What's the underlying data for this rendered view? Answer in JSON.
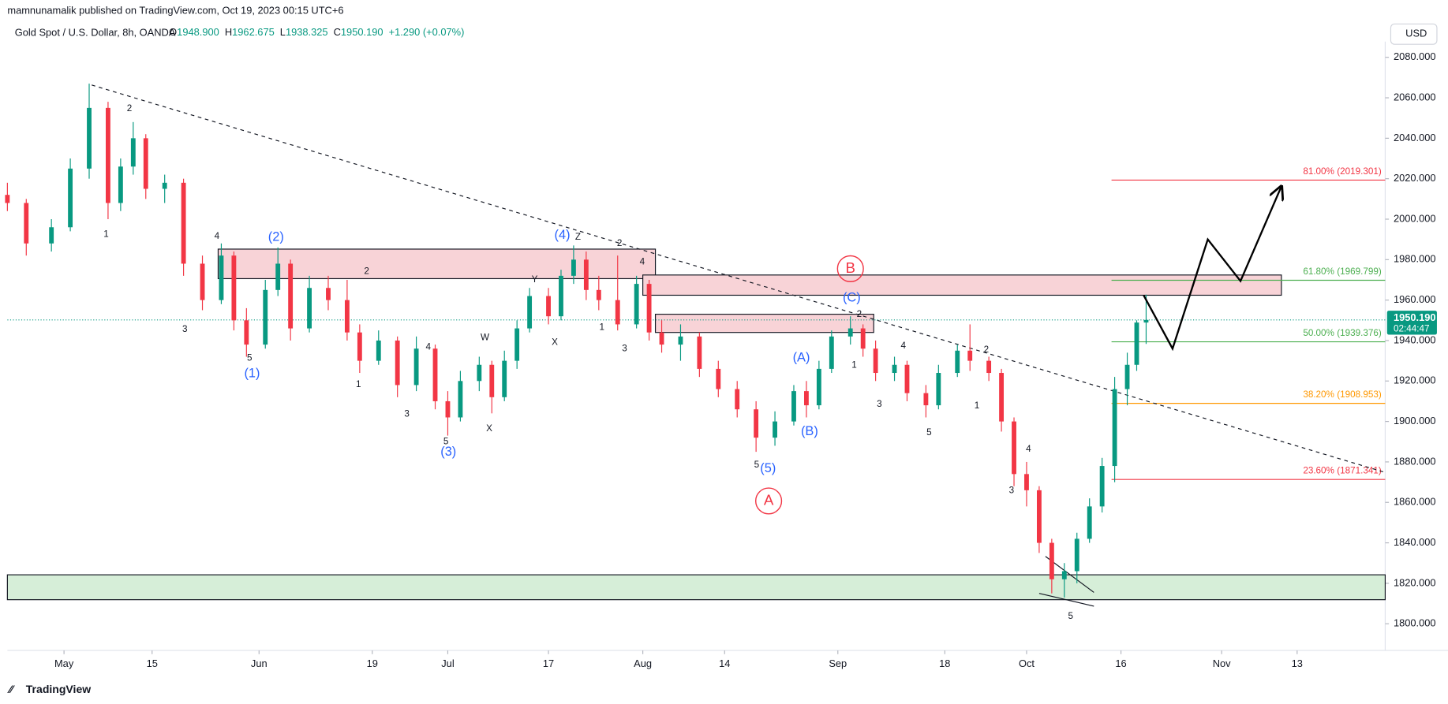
{
  "header": {
    "publisher": "mamnunamalik published on TradingView.com, Oct 19, 2023 00:15 UTC+6",
    "symbol": "Gold Spot / U.S. Dollar, 8h, OANDA",
    "ohlc": [
      {
        "label": "O",
        "value": "1948.900"
      },
      {
        "label": "H",
        "value": "1962.675"
      },
      {
        "label": "L",
        "value": "1938.325"
      },
      {
        "label": "C",
        "value": "1950.190"
      }
    ],
    "change": "+1.290 (+0.07%)",
    "currency": "USD"
  },
  "chart_data": {
    "type": "candlestick",
    "xlim": [
      -9,
      210
    ],
    "ylim": [
      1786.8,
      2087.8
    ],
    "xticks": [
      {
        "value": 0,
        "label": "May"
      },
      {
        "value": 14,
        "label": "15"
      },
      {
        "value": 31,
        "label": "Jun"
      },
      {
        "value": 49,
        "label": "19"
      },
      {
        "value": 61,
        "label": "Jul"
      },
      {
        "value": 77,
        "label": "17"
      },
      {
        "value": 92,
        "label": "Aug"
      },
      {
        "value": 105,
        "label": "14"
      },
      {
        "value": 123,
        "label": "Sep"
      },
      {
        "value": 140,
        "label": "18"
      },
      {
        "value": 153,
        "label": "Oct"
      },
      {
        "value": 168,
        "label": "16"
      },
      {
        "value": 184,
        "label": "Nov"
      },
      {
        "value": 196,
        "label": "13"
      }
    ],
    "yticks": [
      {
        "value": 2080,
        "label": "2080.000"
      },
      {
        "value": 2060,
        "label": "2060.000"
      },
      {
        "value": 2040,
        "label": "2040.000"
      },
      {
        "value": 2020,
        "label": "2020.000"
      },
      {
        "value": 2000,
        "label": "2000.000"
      },
      {
        "value": 1980,
        "label": "1980.000"
      },
      {
        "value": 1960,
        "label": "1960.000"
      },
      {
        "value": 1940,
        "label": "1940.000"
      },
      {
        "value": 1920,
        "label": "1920.000"
      },
      {
        "value": 1900,
        "label": "1900.000"
      },
      {
        "value": 1880,
        "label": "1880.000"
      },
      {
        "value": 1860,
        "label": "1860.000"
      },
      {
        "value": 1840,
        "label": "1840.000"
      },
      {
        "value": 1820,
        "label": "1820.000"
      },
      {
        "value": 1800,
        "label": "1800.000"
      }
    ],
    "up_color": "#089981",
    "down_color": "#f23645",
    "candles": [
      {
        "x": -9,
        "o": 2012,
        "h": 2018,
        "l": 2004,
        "c": 2008
      },
      {
        "x": -6,
        "o": 2008,
        "h": 2010,
        "l": 1982,
        "c": 1988
      },
      {
        "x": -2,
        "o": 1988,
        "h": 2000,
        "l": 1984,
        "c": 1996
      },
      {
        "x": 1,
        "o": 1996,
        "h": 2030,
        "l": 1994,
        "c": 2025
      },
      {
        "x": 4,
        "o": 2025,
        "h": 2067,
        "l": 2020,
        "c": 2055
      },
      {
        "x": 7,
        "o": 2055,
        "h": 2058,
        "l": 2000,
        "c": 2008
      },
      {
        "x": 9,
        "o": 2008,
        "h": 2030,
        "l": 2004,
        "c": 2026
      },
      {
        "x": 11,
        "o": 2026,
        "h": 2048,
        "l": 2022,
        "c": 2040
      },
      {
        "x": 13,
        "o": 2040,
        "h": 2042,
        "l": 2010,
        "c": 2015
      },
      {
        "x": 16,
        "o": 2015,
        "h": 2022,
        "l": 2008,
        "c": 2018
      },
      {
        "x": 19,
        "o": 2018,
        "h": 2020,
        "l": 1972,
        "c": 1978
      },
      {
        "x": 22,
        "o": 1978,
        "h": 1982,
        "l": 1955,
        "c": 1960
      },
      {
        "x": 25,
        "o": 1960,
        "h": 1988,
        "l": 1958,
        "c": 1982
      },
      {
        "x": 27,
        "o": 1982,
        "h": 1984,
        "l": 1945,
        "c": 1950
      },
      {
        "x": 29,
        "o": 1950,
        "h": 1956,
        "l": 1932,
        "c": 1938
      },
      {
        "x": 32,
        "o": 1938,
        "h": 1970,
        "l": 1936,
        "c": 1965
      },
      {
        "x": 34,
        "o": 1965,
        "h": 1986,
        "l": 1962,
        "c": 1978
      },
      {
        "x": 36,
        "o": 1978,
        "h": 1980,
        "l": 1940,
        "c": 1946
      },
      {
        "x": 39,
        "o": 1946,
        "h": 1972,
        "l": 1944,
        "c": 1966
      },
      {
        "x": 42,
        "o": 1966,
        "h": 1972,
        "l": 1955,
        "c": 1960
      },
      {
        "x": 45,
        "o": 1960,
        "h": 1970,
        "l": 1940,
        "c": 1944
      },
      {
        "x": 47,
        "o": 1944,
        "h": 1948,
        "l": 1924,
        "c": 1930
      },
      {
        "x": 50,
        "o": 1930,
        "h": 1945,
        "l": 1928,
        "c": 1940
      },
      {
        "x": 53,
        "o": 1940,
        "h": 1942,
        "l": 1912,
        "c": 1918
      },
      {
        "x": 56,
        "o": 1918,
        "h": 1942,
        "l": 1915,
        "c": 1936
      },
      {
        "x": 59,
        "o": 1936,
        "h": 1938,
        "l": 1906,
        "c": 1910
      },
      {
        "x": 61,
        "o": 1910,
        "h": 1915,
        "l": 1893,
        "c": 1902
      },
      {
        "x": 63,
        "o": 1902,
        "h": 1925,
        "l": 1900,
        "c": 1920
      },
      {
        "x": 66,
        "o": 1920,
        "h": 1932,
        "l": 1915,
        "c": 1928
      },
      {
        "x": 68,
        "o": 1928,
        "h": 1930,
        "l": 1904,
        "c": 1912
      },
      {
        "x": 70,
        "o": 1912,
        "h": 1935,
        "l": 1910,
        "c": 1930
      },
      {
        "x": 72,
        "o": 1930,
        "h": 1950,
        "l": 1926,
        "c": 1946
      },
      {
        "x": 74,
        "o": 1946,
        "h": 1966,
        "l": 1944,
        "c": 1962
      },
      {
        "x": 77,
        "o": 1962,
        "h": 1966,
        "l": 1948,
        "c": 1952
      },
      {
        "x": 79,
        "o": 1952,
        "h": 1975,
        "l": 1950,
        "c": 1972
      },
      {
        "x": 81,
        "o": 1972,
        "h": 1987,
        "l": 1968,
        "c": 1980
      },
      {
        "x": 83,
        "o": 1980,
        "h": 1984,
        "l": 1960,
        "c": 1965
      },
      {
        "x": 85,
        "o": 1965,
        "h": 1972,
        "l": 1955,
        "c": 1960
      },
      {
        "x": 88,
        "o": 1960,
        "h": 1982,
        "l": 1945,
        "c": 1948
      },
      {
        "x": 91,
        "o": 1948,
        "h": 1972,
        "l": 1946,
        "c": 1968
      },
      {
        "x": 93,
        "o": 1968,
        "h": 1970,
        "l": 1940,
        "c": 1944
      },
      {
        "x": 95,
        "o": 1944,
        "h": 1950,
        "l": 1934,
        "c": 1938
      },
      {
        "x": 98,
        "o": 1938,
        "h": 1948,
        "l": 1930,
        "c": 1942
      },
      {
        "x": 101,
        "o": 1942,
        "h": 1944,
        "l": 1922,
        "c": 1926
      },
      {
        "x": 104,
        "o": 1926,
        "h": 1930,
        "l": 1912,
        "c": 1916
      },
      {
        "x": 107,
        "o": 1916,
        "h": 1920,
        "l": 1902,
        "c": 1906
      },
      {
        "x": 110,
        "o": 1906,
        "h": 1910,
        "l": 1885,
        "c": 1892
      },
      {
        "x": 113,
        "o": 1892,
        "h": 1905,
        "l": 1888,
        "c": 1900
      },
      {
        "x": 116,
        "o": 1900,
        "h": 1918,
        "l": 1898,
        "c": 1915
      },
      {
        "x": 118,
        "o": 1915,
        "h": 1920,
        "l": 1902,
        "c": 1908
      },
      {
        "x": 120,
        "o": 1908,
        "h": 1930,
        "l": 1906,
        "c": 1926
      },
      {
        "x": 122,
        "o": 1926,
        "h": 1945,
        "l": 1924,
        "c": 1942
      },
      {
        "x": 125,
        "o": 1942,
        "h": 1952,
        "l": 1938,
        "c": 1946
      },
      {
        "x": 127,
        "o": 1946,
        "h": 1948,
        "l": 1932,
        "c": 1936
      },
      {
        "x": 129,
        "o": 1936,
        "h": 1940,
        "l": 1920,
        "c": 1924
      },
      {
        "x": 132,
        "o": 1924,
        "h": 1932,
        "l": 1920,
        "c": 1928
      },
      {
        "x": 134,
        "o": 1928,
        "h": 1930,
        "l": 1910,
        "c": 1914
      },
      {
        "x": 137,
        "o": 1914,
        "h": 1918,
        "l": 1902,
        "c": 1908
      },
      {
        "x": 139,
        "o": 1908,
        "h": 1928,
        "l": 1906,
        "c": 1924
      },
      {
        "x": 142,
        "o": 1924,
        "h": 1938,
        "l": 1922,
        "c": 1935
      },
      {
        "x": 144,
        "o": 1935,
        "h": 1948,
        "l": 1925,
        "c": 1930
      },
      {
        "x": 147,
        "o": 1930,
        "h": 1932,
        "l": 1920,
        "c": 1924
      },
      {
        "x": 149,
        "o": 1924,
        "h": 1926,
        "l": 1895,
        "c": 1900
      },
      {
        "x": 151,
        "o": 1900,
        "h": 1902,
        "l": 1868,
        "c": 1874
      },
      {
        "x": 153,
        "o": 1874,
        "h": 1880,
        "l": 1858,
        "c": 1866
      },
      {
        "x": 155,
        "o": 1866,
        "h": 1868,
        "l": 1835,
        "c": 1840
      },
      {
        "x": 157,
        "o": 1840,
        "h": 1842,
        "l": 1815,
        "c": 1822
      },
      {
        "x": 159,
        "o": 1822,
        "h": 1830,
        "l": 1813,
        "c": 1826
      },
      {
        "x": 161,
        "o": 1826,
        "h": 1845,
        "l": 1820,
        "c": 1842
      },
      {
        "x": 163,
        "o": 1842,
        "h": 1862,
        "l": 1840,
        "c": 1858
      },
      {
        "x": 165,
        "o": 1858,
        "h": 1882,
        "l": 1855,
        "c": 1878
      },
      {
        "x": 167,
        "o": 1878,
        "h": 1922,
        "l": 1870,
        "c": 1916
      },
      {
        "x": 169,
        "o": 1916,
        "h": 1934,
        "l": 1908,
        "c": 1928
      },
      {
        "x": 170.5,
        "o": 1928,
        "h": 1950,
        "l": 1925,
        "c": 1948.9
      },
      {
        "x": 172,
        "o": 1948.9,
        "h": 1962.675,
        "l": 1938.325,
        "c": 1950.19
      }
    ],
    "last_price": {
      "value": 1950.19,
      "label": "1950.190",
      "countdown": "02:44:47",
      "color": "#089981"
    },
    "zones": [
      {
        "x": [
          24.5,
          94
        ],
        "y": [
          1970.6,
          1985.2
        ],
        "color": "#f8d3d7"
      },
      {
        "x": [
          92,
          193.5
        ],
        "y": [
          1962.4,
          1972.4
        ],
        "color": "#f8d3d7"
      },
      {
        "x": [
          94,
          128.7
        ],
        "y": [
          1944,
          1953
        ],
        "color": "#f8d3d7"
      },
      {
        "x": [
          -9,
          210
        ],
        "y": [
          1811.9,
          1824.2
        ],
        "color": "#d6eed8"
      }
    ],
    "trendline": {
      "x": [
        4.4,
        210
      ],
      "y": [
        2066.3,
        1874.8
      ]
    },
    "projection": {
      "x": [
        171.6,
        176.2,
        181.8,
        187,
        193.5
      ],
      "y": [
        1962.4,
        1936,
        1990,
        1969.4,
        2016.2
      ]
    },
    "triangle": [
      {
        "x": [
          156,
          163.7
        ],
        "y": [
          1833.3,
          1815.5
        ]
      },
      {
        "x": [
          155,
          163.7
        ],
        "y": [
          1815,
          1808.7
        ]
      }
    ],
    "fib_x": [
      166.5,
      210
    ],
    "fib_levels": [
      {
        "label": "81.00% (2019.301)",
        "value": 2019.301,
        "color": "#f23645"
      },
      {
        "label": "61.80% (1969.799)",
        "value": 1969.799,
        "color": "#4caf50"
      },
      {
        "label": "50.00% (1939.376)",
        "value": 1939.376,
        "color": "#4caf50"
      },
      {
        "label": "38.20% (1908.953)",
        "value": 1908.953,
        "color": "#ff9800"
      },
      {
        "label": "23.60% (1871.341)",
        "value": 1871.341,
        "color": "#f23645"
      }
    ],
    "wave_labels": [
      {
        "text": "(1)",
        "x": 29.9,
        "y": 1923.6,
        "color": "#2962ff"
      },
      {
        "text": "(2)",
        "x": 33.7,
        "y": 1991,
        "color": "#2962ff"
      },
      {
        "text": "(3)",
        "x": 61.1,
        "y": 1884.8,
        "color": "#2962ff"
      },
      {
        "text": "(4)",
        "x": 79.2,
        "y": 1992,
        "color": "#2962ff"
      },
      {
        "text": "(5)",
        "x": 111.9,
        "y": 1876.6,
        "color": "#2962ff"
      },
      {
        "text": "(A)",
        "x": 117.2,
        "y": 1931.3,
        "color": "#2962ff"
      },
      {
        "text": "(B)",
        "x": 118.5,
        "y": 1895,
        "color": "#2962ff"
      },
      {
        "text": "(C)",
        "x": 125.2,
        "y": 1961,
        "color": "#2962ff"
      },
      {
        "text": "A",
        "x": 112,
        "y": 1860.7,
        "color": "#f23645",
        "circle": true
      },
      {
        "text": "B",
        "x": 125,
        "y": 1975.5,
        "color": "#f23645",
        "circle": true
      },
      {
        "text": "2",
        "x": 10.4,
        "y": 2054.5,
        "color": "#131722"
      },
      {
        "text": "1",
        "x": 6.7,
        "y": 1992.4,
        "color": "#131722"
      },
      {
        "text": "4",
        "x": 24.3,
        "y": 1991.5,
        "color": "#131722"
      },
      {
        "text": "3",
        "x": 19.2,
        "y": 1945.5,
        "color": "#131722"
      },
      {
        "text": "5",
        "x": 29.5,
        "y": 1931.3,
        "color": "#131722"
      },
      {
        "text": "2",
        "x": 48.1,
        "y": 1974.2,
        "color": "#131722"
      },
      {
        "text": "1",
        "x": 46.8,
        "y": 1918.1,
        "color": "#131722"
      },
      {
        "text": "3",
        "x": 54.5,
        "y": 1903.5,
        "color": "#131722"
      },
      {
        "text": "4",
        "x": 57.9,
        "y": 1936.8,
        "color": "#131722"
      },
      {
        "text": "5",
        "x": 60.7,
        "y": 1889.9,
        "color": "#131722"
      },
      {
        "text": "W",
        "x": 66.9,
        "y": 1941.4,
        "color": "#131722"
      },
      {
        "text": "X",
        "x": 67.6,
        "y": 1896.3,
        "color": "#131722"
      },
      {
        "text": "X",
        "x": 78,
        "y": 1939,
        "color": "#131722"
      },
      {
        "text": "Y",
        "x": 74.8,
        "y": 1970,
        "color": "#131722"
      },
      {
        "text": "Z",
        "x": 81.7,
        "y": 1991,
        "color": "#131722"
      },
      {
        "text": "2",
        "x": 88.3,
        "y": 1988,
        "color": "#131722"
      },
      {
        "text": "4",
        "x": 91.9,
        "y": 1978.8,
        "color": "#131722"
      },
      {
        "text": "1",
        "x": 85.5,
        "y": 1946.4,
        "color": "#131722"
      },
      {
        "text": "3",
        "x": 89.1,
        "y": 1935.9,
        "color": "#131722"
      },
      {
        "text": "5",
        "x": 110.1,
        "y": 1878.5,
        "color": "#131722"
      },
      {
        "text": "2",
        "x": 126.4,
        "y": 1952.8,
        "color": "#131722"
      },
      {
        "text": "1",
        "x": 125.6,
        "y": 1927.7,
        "color": "#131722"
      },
      {
        "text": "3",
        "x": 129.6,
        "y": 1908.5,
        "color": "#131722"
      },
      {
        "text": "4",
        "x": 133.4,
        "y": 1937.3,
        "color": "#131722"
      },
      {
        "text": "5",
        "x": 137.5,
        "y": 1894.4,
        "color": "#131722"
      },
      {
        "text": "1",
        "x": 145.1,
        "y": 1907.6,
        "color": "#131722"
      },
      {
        "text": "2",
        "x": 146.6,
        "y": 1935.4,
        "color": "#131722"
      },
      {
        "text": "4",
        "x": 153.3,
        "y": 1886.2,
        "color": "#131722"
      },
      {
        "text": "3",
        "x": 150.6,
        "y": 1865.7,
        "color": "#131722"
      },
      {
        "text": "5",
        "x": 160,
        "y": 1803.7,
        "color": "#131722"
      }
    ]
  },
  "footer": {
    "brand": "TradingView"
  }
}
